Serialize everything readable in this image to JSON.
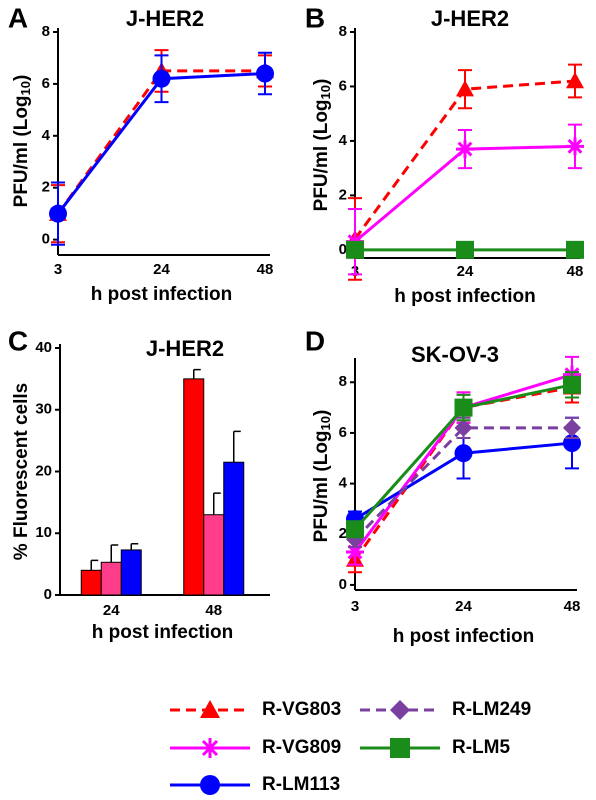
{
  "chart_data": [
    {
      "type": "line",
      "panel": "A",
      "title": "J-HER2",
      "ylabel": [
        "PFU/ml (Log",
        "10",
        ")"
      ],
      "xlabel": "h post infection",
      "categories": [
        "3",
        "24",
        "48"
      ],
      "ylim": [
        -0.4,
        8
      ],
      "yticks": [
        0,
        2,
        4,
        6,
        8
      ],
      "series": [
        {
          "name": "R-VG803",
          "color": "#ff0000",
          "marker": "triangle",
          "dash": true,
          "values": [
            1.0,
            6.5,
            6.5
          ],
          "errors": [
            1.1,
            0.8,
            0.6
          ]
        },
        {
          "name": "R-LM113",
          "color": "#0000ff",
          "marker": "circle",
          "dash": false,
          "values": [
            1.0,
            6.2,
            6.4
          ],
          "errors": [
            1.2,
            0.9,
            0.8
          ]
        }
      ]
    },
    {
      "type": "line",
      "panel": "B",
      "title": "J-HER2",
      "ylabel": [
        "PFU/ml (Log",
        "10",
        ")"
      ],
      "xlabel": "h post infection",
      "categories": [
        "3",
        "24",
        "48"
      ],
      "ylim": [
        -0.3,
        8
      ],
      "yticks": [
        0,
        2,
        4,
        6,
        8
      ],
      "series": [
        {
          "name": "R-VG803",
          "color": "#ff0000",
          "marker": "triangle",
          "dash": true,
          "values": [
            0.4,
            5.9,
            6.2
          ],
          "errors": [
            1.5,
            0.7,
            0.6
          ]
        },
        {
          "name": "R-VG809",
          "color": "#ff00ff",
          "marker": "star",
          "dash": false,
          "values": [
            0.3,
            3.7,
            3.8
          ],
          "errors": [
            1.2,
            0.7,
            0.8
          ]
        },
        {
          "name": "R-LM5",
          "color": "#1a8c1a",
          "marker": "square",
          "dash": false,
          "values": [
            0,
            0,
            0
          ],
          "errors": [
            0,
            0,
            0
          ]
        }
      ]
    },
    {
      "type": "bar",
      "panel": "C",
      "title": "J-HER2",
      "ylabel": "% Fluorescent cells",
      "xlabel": "h post infection",
      "categories": [
        "24",
        "48"
      ],
      "ylim": [
        0,
        40
      ],
      "yticks": [
        0,
        10,
        20,
        30,
        40
      ],
      "series": [
        {
          "color": "#ff0000",
          "values": [
            4,
            35
          ],
          "errors": [
            1.6,
            1.5
          ]
        },
        {
          "color": "#ff3d8b",
          "values": [
            5.3,
            13
          ],
          "errors": [
            2.8,
            3.5
          ]
        },
        {
          "color": "#0000ff",
          "values": [
            7.3,
            21.5
          ],
          "errors": [
            1,
            5
          ]
        }
      ]
    },
    {
      "type": "line",
      "panel": "D",
      "title": "SK-OV-3",
      "ylabel": [
        "PFU/ml (Log",
        "10",
        ")"
      ],
      "xlabel": "h post infection",
      "categories": [
        "3",
        "24",
        "48"
      ],
      "ylim": [
        -0.2,
        8.8
      ],
      "yticks": [
        0,
        2,
        4,
        6,
        8
      ],
      "series": [
        {
          "name": "R-VG803",
          "color": "#ff0000",
          "marker": "triangle",
          "dash": true,
          "values": [
            1.0,
            7.0,
            7.8
          ],
          "errors": [
            0.5,
            0.6,
            0.6
          ]
        },
        {
          "name": "R-VG809",
          "color": "#ff00ff",
          "marker": "star",
          "dash": false,
          "values": [
            1.3,
            7.0,
            8.3
          ],
          "errors": [
            0.5,
            0.6,
            0.7
          ]
        },
        {
          "name": "R-LM113",
          "color": "#0000ff",
          "marker": "circle",
          "dash": false,
          "values": [
            2.6,
            5.2,
            5.6
          ],
          "errors": [
            0.3,
            1.0,
            1.0
          ]
        },
        {
          "name": "R-LM249",
          "color": "#7b3fa0",
          "marker": "diamond",
          "dash": true,
          "values": [
            1.8,
            6.2,
            6.2
          ],
          "errors": [
            0.3,
            0.4,
            0.4
          ]
        },
        {
          "name": "R-LM5",
          "color": "#1a8c1a",
          "marker": "square",
          "dash": false,
          "values": [
            2.2,
            7.0,
            7.9
          ],
          "errors": [
            0.3,
            0.5,
            0.5
          ]
        }
      ]
    }
  ]
}
